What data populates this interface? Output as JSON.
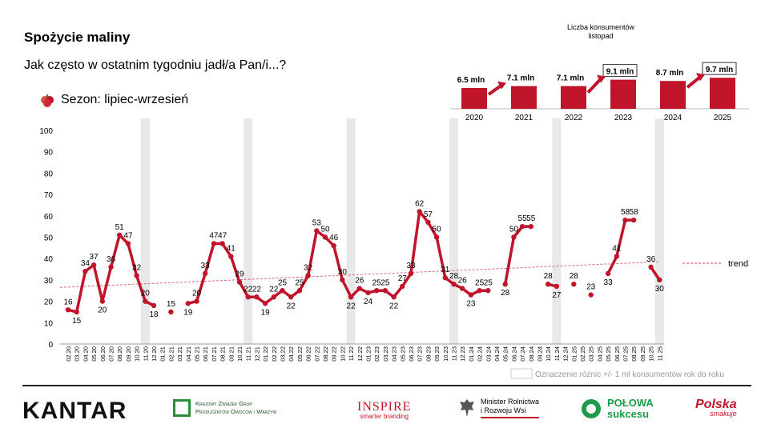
{
  "header": {
    "title": "Spożycie maliny",
    "subtitle": "Jak często w ostatnim tygodniu jadł/a Pan/i...?",
    "season": "Sezon: lipiec-wrzesień",
    "consumers_title_line1": "Liczba konsumentów",
    "consumers_title_line2": "listopad"
  },
  "colors": {
    "series": "#c0142b",
    "band": "#e8e8e8",
    "trend": "#d96b7e",
    "grid_axis": "#999999"
  },
  "chart_data": [
    {
      "type": "line",
      "title": "",
      "ylim": [
        0,
        100
      ],
      "yticks": [
        "0",
        "10",
        "20",
        "30",
        "40",
        "50",
        "60",
        "70",
        "80",
        "90",
        "100"
      ],
      "categories": [
        "02.20",
        "03.20",
        "04.20",
        "05.20",
        "06.20",
        "07.20",
        "08.20",
        "09.20",
        "10.20",
        "11.20",
        "12.20",
        "01.21",
        "02.21",
        "03.21",
        "04.21",
        "05.21",
        "06.21",
        "07.21",
        "08.21",
        "09.21",
        "10.21",
        "11.21",
        "12.21",
        "01.22",
        "02.22",
        "03.22",
        "04.22",
        "05.22",
        "06.22",
        "07.22",
        "08.22",
        "09.22",
        "10.22",
        "11.22",
        "12.22",
        "01.23",
        "02.23",
        "03.23",
        "04.23",
        "05.23",
        "06.23",
        "07.23",
        "08.23",
        "09.23",
        "10.23",
        "11.23",
        "12.23",
        "01.24",
        "02.24",
        "03.24",
        "04.24",
        "05.24",
        "06.24",
        "07.24",
        "08.24",
        "09.24",
        "10.24",
        "11.24",
        "12.24",
        "01.25",
        "02.25",
        "03.25",
        "04.25",
        "05.25",
        "06.25",
        "07.25",
        "08.25",
        "09.25",
        "10.25",
        "11.25"
      ],
      "values": [
        16,
        15,
        34,
        37,
        20,
        36,
        51,
        47,
        32,
        20,
        18,
        null,
        15,
        null,
        19,
        20,
        33,
        47,
        47,
        41,
        29,
        22,
        22,
        19,
        22,
        25,
        22,
        25,
        32,
        53,
        50,
        46,
        30,
        22,
        26,
        24,
        25,
        25,
        22,
        27,
        33,
        62,
        57,
        50,
        31,
        28,
        26,
        23,
        25,
        25,
        null,
        28,
        50,
        55,
        55,
        null,
        28,
        27,
        null,
        28,
        null,
        23,
        null,
        33,
        41,
        58,
        58,
        null,
        36,
        30
      ],
      "labels": [
        "16",
        "15",
        "34",
        "37",
        "20",
        "36",
        "51",
        "47",
        "32",
        "20",
        "18",
        "",
        "15",
        "",
        "19",
        "20",
        "33",
        "47",
        "47",
        "41",
        "29",
        "22",
        "22",
        "19",
        "22",
        "25",
        "22",
        "25",
        "32",
        "53",
        "50",
        "46",
        "30",
        "22",
        "26",
        "24",
        "25",
        "25",
        "22",
        "27",
        "33",
        "62",
        "57",
        "50",
        "31",
        "28",
        "26",
        "23",
        "25",
        "25",
        "",
        "28",
        "50",
        "55",
        "55",
        "",
        "28",
        "27",
        "",
        "28",
        "",
        "23",
        "",
        "33",
        "41",
        "58",
        "58",
        "",
        "36",
        "30"
      ],
      "shaded_categories": [
        "11.20",
        "11.21",
        "11.22",
        "11.23",
        "11.24",
        "11.25"
      ],
      "trend": {
        "start": 26.5,
        "end": 38.5,
        "label": "trend"
      },
      "legend_note": "Oznaczenie różnic +/- 1 ml konsumentów rok do roku"
    },
    {
      "type": "bar",
      "categories": [
        "2020",
        "2021",
        "2022",
        "2023",
        "2024",
        "2025"
      ],
      "values": [
        6.5,
        7.1,
        7.1,
        9.1,
        8.7,
        9.7
      ],
      "labels": [
        "6.5 mln",
        "7.1 mln",
        "7.1 mln",
        "9.1 mln",
        "8.7 mln",
        "9.7 mln"
      ],
      "boxed": [
        false,
        false,
        false,
        true,
        false,
        true
      ],
      "arrows": [
        1,
        3,
        5
      ]
    }
  ],
  "footer": {
    "kantar": "KANTAR",
    "kzg_line1": "Krajowy Związek Grup",
    "kzg_line2": "Producentów Owoców i Warzyw",
    "inspire": "INSPIRE",
    "inspire_sub": "smarter branding",
    "minister_line1": "Minister Rolnictwa",
    "minister_line2": "i Rozwoju Wsi",
    "polowa_line1": "POŁOWA",
    "polowa_line2": "sukcesu",
    "polska": "Polska",
    "polska_sub": "smakuje"
  }
}
